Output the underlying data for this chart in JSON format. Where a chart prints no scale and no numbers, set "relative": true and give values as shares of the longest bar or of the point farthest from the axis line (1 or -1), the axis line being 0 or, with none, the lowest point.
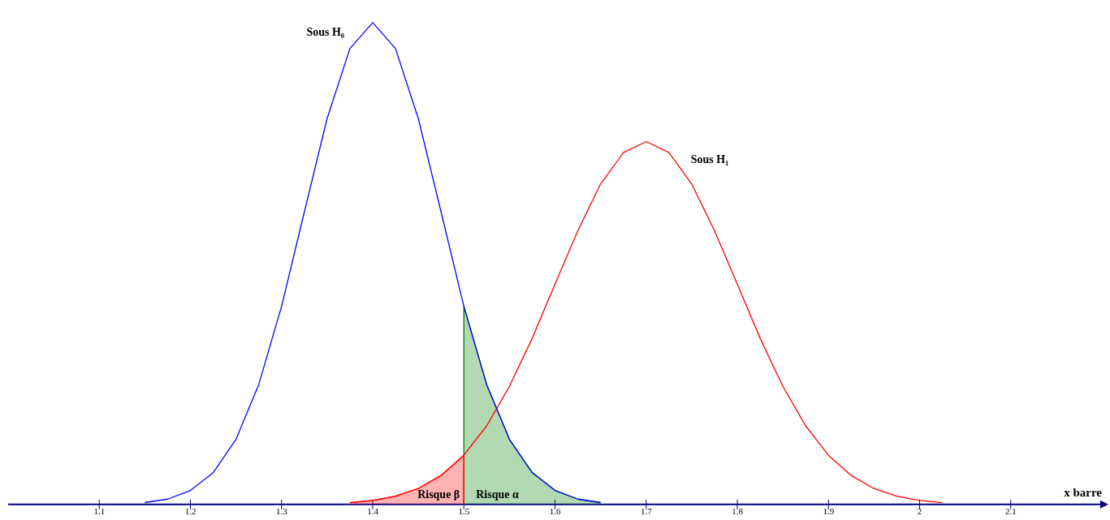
{
  "chart_data": {
    "type": "line",
    "relative": true,
    "xlabel": "x barre",
    "xlim": [
      1.0,
      2.2
    ],
    "xticks": [
      1.1,
      1.2,
      1.3,
      1.4,
      1.5,
      1.6,
      1.7,
      1.8,
      1.9,
      2,
      2.1
    ],
    "tick_labels": "x",
    "grid": false,
    "legend": false,
    "marker": "none",
    "line_style": "solid",
    "series": [
      {
        "color": "#0000ff",
        "x": [
          1.15,
          1.175,
          1.2,
          1.225,
          1.25,
          1.275,
          1.3,
          1.325,
          1.35,
          1.375,
          1.4,
          1.425,
          1.45,
          1.475,
          1.5,
          1.525,
          1.55,
          1.575,
          1.6,
          1.625,
          1.65
        ],
        "values": [
          0.0039,
          0.011,
          0.029,
          0.066,
          0.135,
          0.249,
          0.411,
          0.607,
          0.801,
          0.946,
          1,
          0.946,
          0.801,
          0.607,
          0.411,
          0.249,
          0.135,
          0.066,
          0.029,
          0.011,
          0.0039
        ]
      },
      {
        "color": "#ff0000",
        "x": [
          1.375,
          1.4,
          1.425,
          1.45,
          1.475,
          1.5,
          1.525,
          1.55,
          1.575,
          1.6,
          1.625,
          1.65,
          1.675,
          1.7,
          1.725,
          1.75,
          1.775,
          1.8,
          1.825,
          1.85,
          1.875,
          1.9,
          1.925,
          1.95,
          1.975,
          2.0,
          2.025
        ],
        "values": [
          0.0038,
          0.0084,
          0.017,
          0.033,
          0.06,
          0.102,
          0.163,
          0.245,
          0.345,
          0.457,
          0.568,
          0.665,
          0.73,
          0.753,
          0.73,
          0.665,
          0.568,
          0.457,
          0.345,
          0.245,
          0.163,
          0.102,
          0.06,
          0.033,
          0.017,
          0.0084,
          0.0038
        ]
      },
      {
        "type": "area",
        "color": "#ff0000",
        "x": [
          1.375,
          1.4,
          1.425,
          1.45,
          1.475,
          1.5,
          1.5
        ],
        "values": [
          0.0038,
          0.0084,
          0.017,
          0.033,
          0.06,
          0.102,
          0
        ]
      },
      {
        "type": "area",
        "color": "#008000",
        "x": [
          1.5,
          1.5,
          1.525,
          1.55,
          1.575,
          1.6,
          1.625,
          1.65
        ],
        "values": [
          0,
          0.411,
          0.249,
          0.135,
          0.066,
          0.029,
          0.011,
          0.0039
        ]
      }
    ],
    "annotations": [
      "Sous H₀",
      "Sous H₁",
      "Risque β",
      "Risque α"
    ]
  }
}
